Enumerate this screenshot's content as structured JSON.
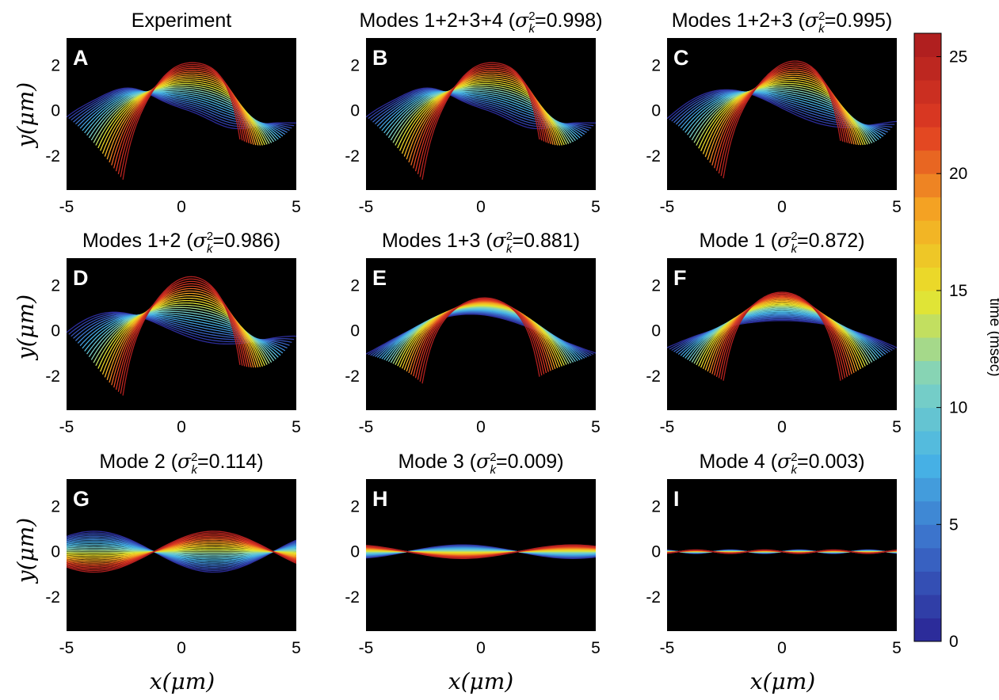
{
  "chart_data": {
    "type": "line",
    "xlabel": "x(μm)",
    "ylabel": "y(μm)",
    "xlim": [
      -5,
      5
    ],
    "ylim": [
      -3.5,
      3.2
    ],
    "xticks": [
      -5,
      0,
      5
    ],
    "yticks": [
      -2,
      0,
      2
    ],
    "background": "#000000",
    "colorbar": {
      "label": "time (msec)",
      "min": 0,
      "max": 26,
      "ticks": [
        0,
        5,
        10,
        15,
        20,
        25
      ],
      "colormap": [
        "#2c2c9a",
        "#3a6bc8",
        "#47b3e6",
        "#7fd3c0",
        "#e8e52a",
        "#f5a623",
        "#e03b22",
        "#b01f1f"
      ]
    },
    "time_steps": 26,
    "panels": [
      {
        "letter": "A",
        "title": "Experiment",
        "modes": [
          1,
          2,
          3,
          4
        ]
      },
      {
        "letter": "B",
        "title_main": "Modes 1+2+3+4 (",
        "title_sigma": "σ",
        "title_sub": "k",
        "title_sup": "2",
        "title_value": "=0.998)",
        "modes": [
          1,
          2,
          3,
          4
        ]
      },
      {
        "letter": "C",
        "title_main": "Modes 1+2+3 (",
        "title_sigma": "σ",
        "title_sub": "k",
        "title_sup": "2",
        "title_value": "=0.995)",
        "modes": [
          1,
          2,
          3
        ]
      },
      {
        "letter": "D",
        "title_main": "Modes 1+2 (",
        "title_sigma": "σ",
        "title_sub": "k",
        "title_sup": "2",
        "title_value": "=0.986)",
        "modes": [
          1,
          2
        ]
      },
      {
        "letter": "E",
        "title_main": "Modes 1+3 (",
        "title_sigma": "σ",
        "title_sub": "k",
        "title_sup": "2",
        "title_value": "=0.881)",
        "modes": [
          1,
          3
        ]
      },
      {
        "letter": "F",
        "title_main": "Mode 1 (",
        "title_sigma": "σ",
        "title_sub": "k",
        "title_sup": "2",
        "title_value": "=0.872)",
        "modes": [
          1
        ]
      },
      {
        "letter": "G",
        "title_main": "Mode 2 (",
        "title_sigma": "σ",
        "title_sub": "k",
        "title_sup": "2",
        "title_value": "=0.114)",
        "modes": [
          2
        ]
      },
      {
        "letter": "H",
        "title_main": "Mode 3 (",
        "title_sigma": "σ",
        "title_sub": "k",
        "title_sup": "2",
        "title_value": "=0.009)",
        "modes": [
          3
        ]
      },
      {
        "letter": "I",
        "title_main": "Mode 4 (",
        "title_sigma": "σ",
        "title_sub": "k",
        "title_sup": "2",
        "title_value": "=0.003)",
        "modes": [
          4
        ]
      }
    ],
    "mode_shapes": {
      "mode1": {
        "peak_y_late": 1.7,
        "peak_y_early": 0.45,
        "end_y_early": -0.75,
        "end_y_late": -2.2
      },
      "mode2": {
        "zero_crossings_x": [
          -1.2,
          4.0
        ],
        "max_amplitude": 0.9
      },
      "mode3": {
        "zero_crossings_x": [
          -3.2,
          1.6
        ],
        "max_amplitude": 0.3
      },
      "mode4": {
        "max_amplitude": 0.08
      }
    }
  }
}
